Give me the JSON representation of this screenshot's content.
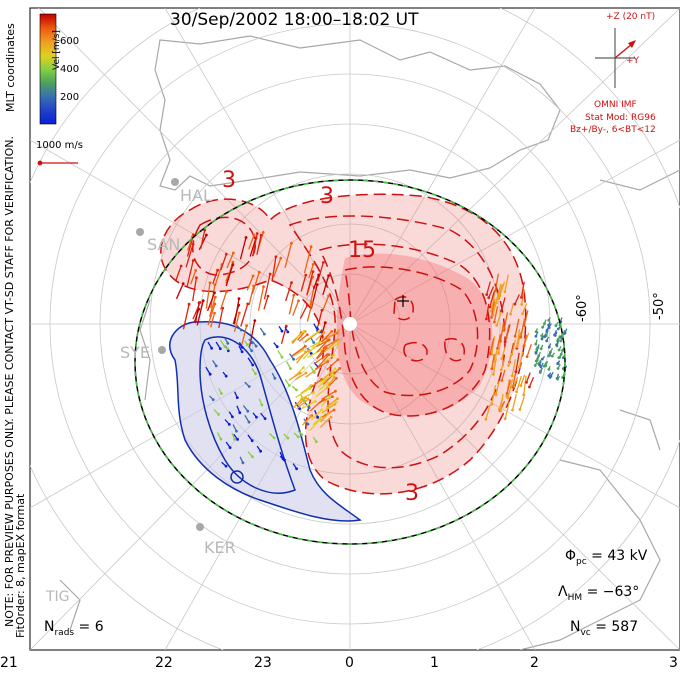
{
  "title": "30/Sep/2002  18:00–18:02  UT",
  "colorbar": {
    "ticks": [
      "600",
      "400",
      "200"
    ],
    "unit": "Vel [m/s]",
    "colors": [
      "#0a1fd8",
      "#3a6fb0",
      "#4aa060",
      "#88d040",
      "#e0d020",
      "#f0a020",
      "#f06010",
      "#e02010",
      "#c00000"
    ]
  },
  "coords_label": "MLT coordinates",
  "vector_scale": "1000 m/s",
  "note": "NOTE: FOR PREVIEW PURPOSES ONLY. PLEASE CONTACT VT-SD STAFF FOR VERIFICATION.",
  "fit_info": "FitOrder: 8, mapEX format",
  "imf": {
    "z_label": "+Z (20 nT)",
    "y_label": "+Y",
    "source": "OMNI IMF",
    "model": "Stat Mod: RG96",
    "condition": "Bz+/By-, 6<BT<12"
  },
  "latitude_labels": [
    "-60°",
    "-50°"
  ],
  "contour_labels": [
    "3",
    "3",
    "15",
    "3"
  ],
  "stations": [
    "HAL",
    "SAN",
    "SYE",
    "KER",
    "TIG"
  ],
  "stats": {
    "phi_sym": "Φ",
    "phi_sub": "pc",
    "phi_val": " = 43 kV",
    "lambda_sym": "Λ",
    "lambda_sub": "HM",
    "lambda_val": " = −63°",
    "nvc_sym": "N",
    "nvc_sub": "vc",
    "nvc_val": " = 587",
    "nrads_sym": "N",
    "nrads_sub": "rads",
    "nrads_val": " = 6"
  },
  "mlt_labels": [
    "21",
    "22",
    "23",
    "0",
    "1",
    "2",
    "3"
  ],
  "colors": {
    "positive_fill": "#f08080",
    "negative_fill": "#c8c8e8",
    "positive_contour": "#d01010",
    "negative_contour": "#1030b0",
    "boundary": "#40c040",
    "grid": "#c8c8c8",
    "land": "#a8a8a8"
  }
}
